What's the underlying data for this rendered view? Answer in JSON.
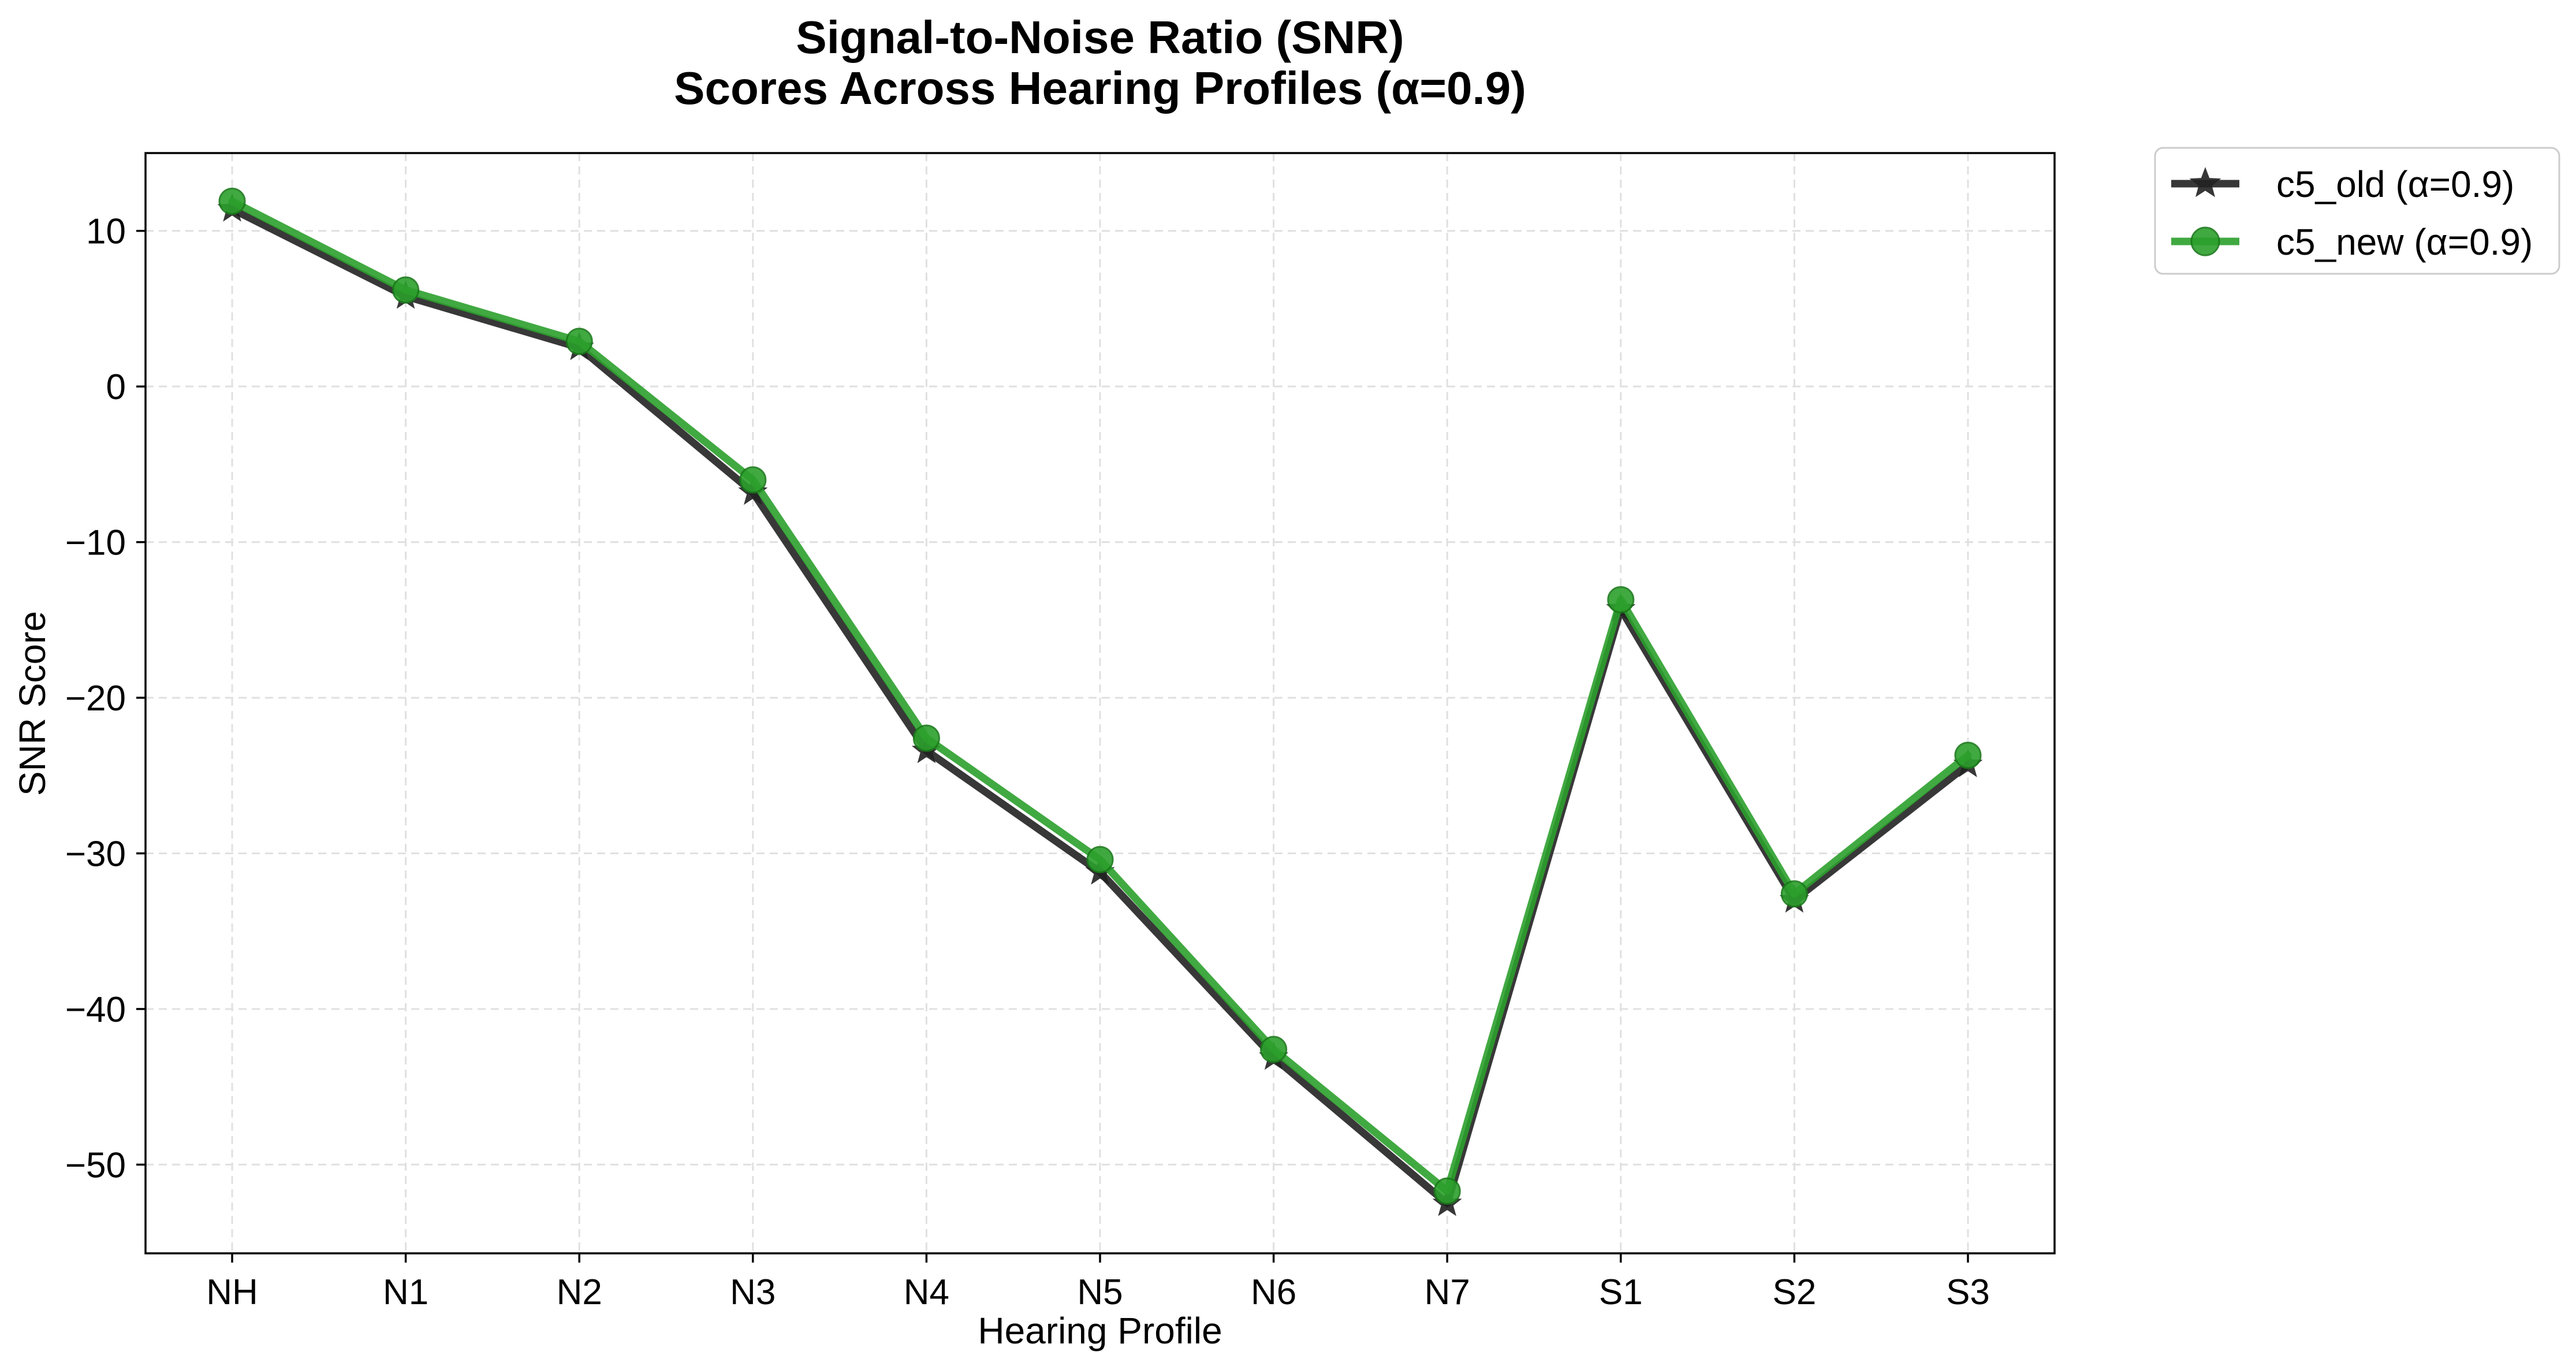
{
  "chart_data": {
    "type": "line",
    "title_lines": [
      "Signal-to-Noise Ratio (SNR)",
      "Scores Across Hearing Profiles (α=0.9)"
    ],
    "xlabel": "Hearing Profile",
    "ylabel": "SNR Score",
    "categories": [
      "NH",
      "N1",
      "N2",
      "N3",
      "N4",
      "N5",
      "N6",
      "N7",
      "S1",
      "S2",
      "S3"
    ],
    "ylim": [
      -55.7,
      15.0
    ],
    "yticks": [
      10,
      0,
      -10,
      -20,
      -30,
      -40,
      -50
    ],
    "ytick_labels": [
      "10",
      "0",
      "−10",
      "−20",
      "−30",
      "−40",
      "−50"
    ],
    "grid": true,
    "legend_position": "outside-top-right",
    "series": [
      {
        "name": "c5_old (α=0.9)",
        "color": "#222222",
        "marker": "star",
        "values": [
          11.4,
          5.8,
          2.5,
          -6.8,
          -23.4,
          -31.2,
          -43.1,
          -52.5,
          -14.3,
          -33.0,
          -24.3
        ]
      },
      {
        "name": "c5_new (α=0.9)",
        "color": "#2ca02c",
        "marker": "circle",
        "values": [
          11.9,
          6.2,
          2.9,
          -6.0,
          -22.6,
          -30.4,
          -42.6,
          -51.7,
          -13.7,
          -32.6,
          -23.7
        ]
      }
    ]
  }
}
